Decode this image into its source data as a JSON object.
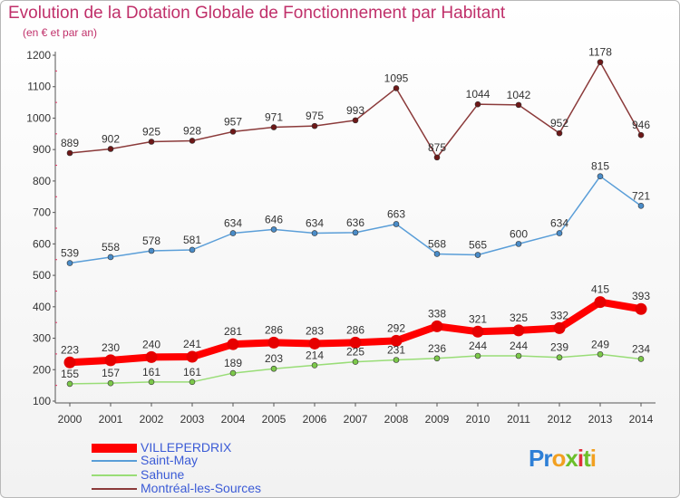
{
  "header": {
    "title": "Evolution de la Dotation Globale de Fonctionnement par Habitant",
    "subtitle": "(en € et par an)"
  },
  "logo": {
    "letters": [
      "P",
      "r",
      "o",
      "x",
      "i",
      "t",
      "i"
    ],
    "colors": [
      "#2e7fd6",
      "#2e7fd6",
      "#f2a020",
      "#6cbf2a",
      "#e0303a",
      "#6cbf2a",
      "#f2a020"
    ]
  },
  "chart_data": {
    "type": "line",
    "x": [
      2000,
      2001,
      2002,
      2003,
      2004,
      2005,
      2006,
      2007,
      2008,
      2009,
      2010,
      2011,
      2012,
      2013,
      2014
    ],
    "x_tick_labels": [
      "2000",
      "2001",
      "2002",
      "2003",
      "2004",
      "2005",
      "2006",
      "2007",
      "2008",
      "2009",
      "2010",
      "2011",
      "2012",
      "2013",
      "2014"
    ],
    "ylim": [
      100,
      1200
    ],
    "y_ticks": [
      100,
      200,
      300,
      400,
      500,
      600,
      700,
      800,
      900,
      1000,
      1100,
      1200
    ],
    "grid": false,
    "legend": "bottom-left",
    "series": [
      {
        "name": "Montréal-les-Sources",
        "color": "#8b3a3a",
        "marker": "#6e1818",
        "width": 1.5,
        "values": [
          889,
          902,
          925,
          928,
          957,
          971,
          975,
          993,
          1095,
          875,
          1044,
          1042,
          952,
          1178,
          946
        ],
        "labels": [
          "889",
          "902",
          "925",
          "928",
          "957",
          "971",
          "975",
          "993",
          "1095",
          "875",
          "1044",
          "1042",
          "952",
          "1178",
          "946"
        ]
      },
      {
        "name": "Saint-May",
        "color": "#5a9ed8",
        "marker": "#4a8cc8",
        "width": 1.5,
        "values": [
          539,
          558,
          578,
          581,
          634,
          646,
          634,
          636,
          663,
          568,
          565,
          600,
          634,
          815,
          721
        ],
        "labels": [
          "539",
          "558",
          "578",
          "581",
          "634",
          "646",
          "634",
          "636",
          "663",
          "568",
          "565",
          "600",
          "634",
          "815",
          "721"
        ]
      },
      {
        "name": "VILLEPERDRIX",
        "color": "#ff0000",
        "marker": "#e60000",
        "width": 8,
        "values": [
          223,
          230,
          240,
          241,
          281,
          286,
          283,
          286,
          292,
          338,
          321,
          325,
          332,
          415,
          393
        ],
        "labels": [
          "223",
          "230",
          "240",
          "241",
          "281",
          "286",
          "283",
          "286",
          "292",
          "338",
          "321",
          "325",
          "332",
          "415",
          "393"
        ]
      },
      {
        "name": "Sahune",
        "color": "#99dd77",
        "marker": "#7cc84a",
        "width": 1.5,
        "values": [
          155,
          157,
          161,
          161,
          189,
          203,
          214,
          225,
          231,
          236,
          244,
          244,
          239,
          249,
          234
        ],
        "labels": [
          "155",
          "157",
          "161",
          "161",
          "189",
          "203",
          "214",
          "225",
          "231",
          "236",
          "244",
          "244",
          "239",
          "249",
          "234"
        ]
      }
    ]
  },
  "legend": {
    "items": [
      {
        "name": "VILLEPERDRIX",
        "color": "#ff0000",
        "thickness": 10,
        "label_color": "#3b5bd6"
      },
      {
        "name": "Saint-May",
        "color": "#5a9ed8",
        "thickness": 2,
        "label_color": "#3b5bd6"
      },
      {
        "name": "Sahune",
        "color": "#99dd77",
        "thickness": 2,
        "label_color": "#3b5bd6"
      },
      {
        "name": "Montréal-les-Sources",
        "color": "#8b3a3a",
        "thickness": 2,
        "label_color": "#3b5bd6"
      }
    ]
  }
}
